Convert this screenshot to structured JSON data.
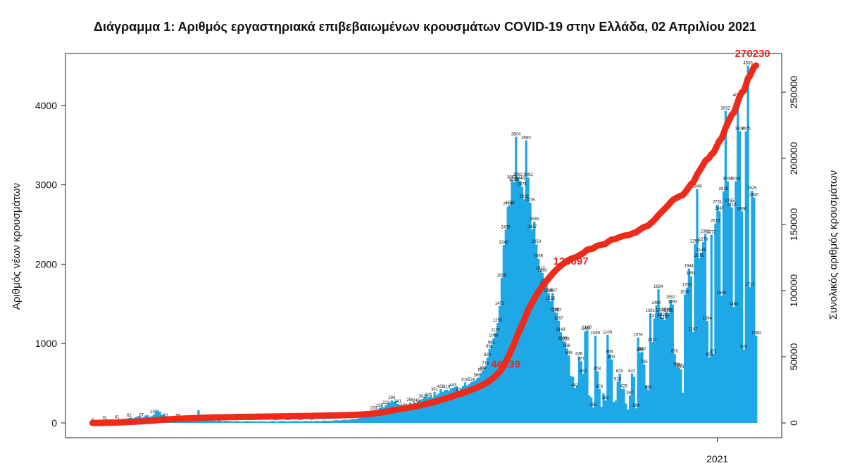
{
  "chart_data": {
    "type": "bar",
    "title": "Διάγραμμα 1: Αριθμός εργαστηριακά επιβεβαιωμένων κρουσμάτων COVID-19 στην Ελλάδα, 02 Απριλίου 2021",
    "ylabel_left": "Αριθμός νέων κρουσμάτων",
    "ylabel_right": "Συνολικός αριθμός κρουσμάτων",
    "ylim_left": [
      0,
      4500
    ],
    "ylim_right": [
      0,
      270230
    ],
    "left_ticks": [
      "0",
      "1000",
      "2000",
      "3000",
      "4000"
    ],
    "right_ticks": [
      "0",
      "50000",
      "100000",
      "150000",
      "200000",
      "250000"
    ],
    "x_tick_label": "2021",
    "x_tick_index": 307,
    "bar_color": "#1fa8e6",
    "line_color": "#ef2a1a",
    "daily_new_cases": [
      4,
      7,
      9,
      10,
      14,
      21,
      31,
      46,
      34,
      30,
      38,
      24,
      41,
      40,
      49,
      53,
      45,
      57,
      62,
      69,
      56,
      71,
      82,
      88,
      67,
      74,
      95,
      97,
      75,
      85,
      105,
      127,
      159,
      143,
      107,
      98,
      61,
      73,
      82,
      72,
      65,
      70,
      58,
      62,
      61,
      52,
      53,
      55,
      41,
      48,
      40,
      46,
      161,
      53,
      44,
      39,
      45,
      37,
      30,
      32,
      28,
      24,
      31,
      26,
      22,
      27,
      25,
      23,
      22,
      19,
      21,
      25,
      20,
      18,
      17,
      22,
      24,
      21,
      19,
      20,
      18,
      16,
      22,
      18,
      20,
      17,
      15,
      19,
      21,
      23,
      18,
      16,
      20,
      24,
      22,
      19,
      18,
      21,
      23,
      20,
      25,
      22,
      19,
      18,
      23,
      26,
      21,
      24,
      22,
      20,
      28,
      25,
      23,
      27,
      30,
      26,
      29,
      24,
      28,
      32,
      35,
      30,
      33,
      38,
      42,
      36,
      40,
      45,
      50,
      47,
      55,
      60,
      72,
      85,
      95,
      110,
      128,
      121,
      153,
      145,
      170,
      188,
      203,
      195,
      221,
      245,
      262,
      284,
      268,
      276,
      241,
      229,
      205,
      188,
      214,
      228,
      258,
      234,
      261,
      249,
      275,
      289,
      302,
      326,
      354,
      325,
      343,
      319,
      391,
      352,
      371,
      426,
      392,
      413,
      419,
      403,
      434,
      443,
      452,
      461,
      379,
      423,
      468,
      510,
      472,
      489,
      514,
      527,
      537,
      566,
      574,
      632,
      657,
      716,
      823,
      931,
      981,
      1068,
      1137,
      1259,
      1473,
      1828,
      2242,
      2435,
      2726,
      2738,
      3062,
      3033,
      3604,
      3092,
      3049,
      2975,
      2818,
      3560,
      3092,
      2775,
      2437,
      2535,
      2250,
      2069,
      1917,
      1890,
      1731,
      1765,
      1636,
      1535,
      1637,
      1398,
      1387,
      1287,
      1143,
      1035,
      1025,
      938,
      849,
      591,
      581,
      442,
      473,
      836,
      777,
      622,
      1155,
      1168,
      348,
      322,
      195,
      1099,
      653,
      426,
      202,
      374,
      282,
      1109,
      866,
      800,
      261,
      281,
      519,
      620,
      427,
      429,
      244,
      169,
      347,
      622,
      581,
      184,
      1076,
      886,
      900,
      735,
      478,
      418,
      1381,
      1017,
      1317,
      1480,
      1684,
      1389,
      1328,
      1297,
      1395,
      1385,
      1552,
      1492,
      870,
      704,
      692,
      673,
      380,
      1616,
      1705,
      1944,
      1851,
      1147,
      2255,
      2949,
      2076,
      2145,
      2279,
      2382,
      1284,
      829,
      2372,
      871,
      2513,
      2751,
      2667,
      1605,
      2918,
      3932,
      3044,
      2765,
      2715,
      1463,
      3044,
      4096,
      3674,
      2666,
      925,
      3675,
      4500,
      1712,
      2925,
      2840,
      1099
    ]
  }
}
